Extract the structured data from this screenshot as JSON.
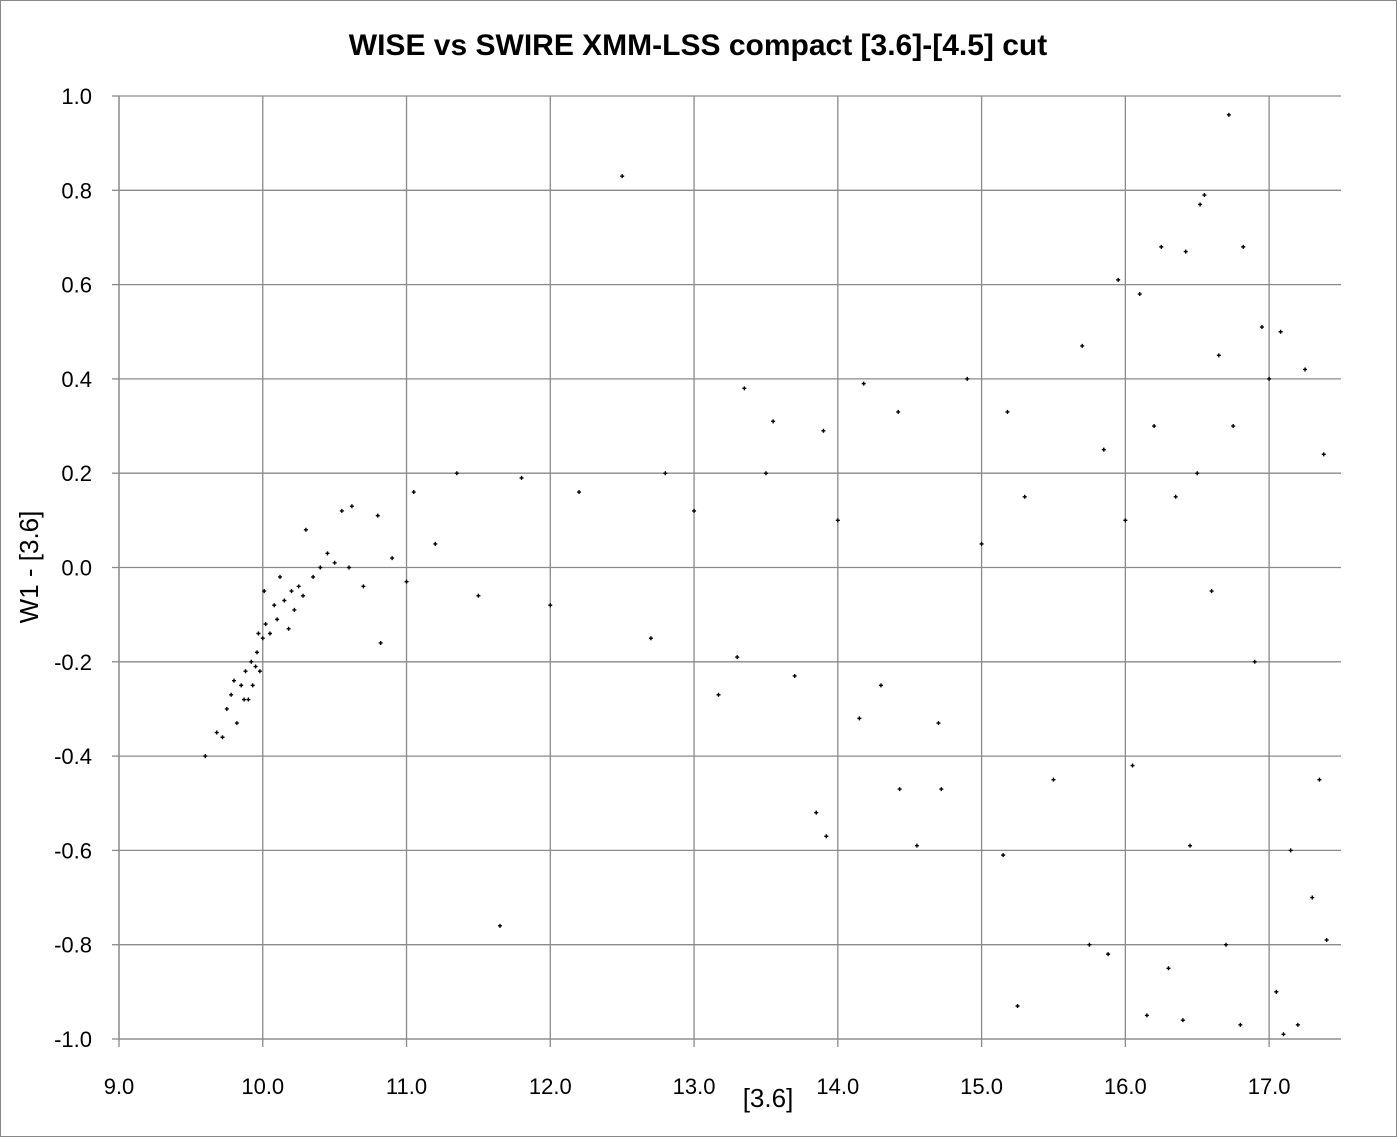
{
  "chart_data": {
    "type": "scatter",
    "title": "WISE vs SWIRE XMM-LSS compact [3.6]-[4.5] cut",
    "xlabel": "[3.6]",
    "ylabel": "W1 - [3.6]",
    "xlim": [
      9.0,
      17.5
    ],
    "ylim": [
      -1.0,
      1.0
    ],
    "x_ticks": [
      "9.0",
      "10.0",
      "11.0",
      "12.0",
      "13.0",
      "14.0",
      "15.0",
      "16.0",
      "17.0"
    ],
    "y_ticks": [
      "1.0",
      "0.8",
      "0.6",
      "0.4",
      "0.2",
      "0.0",
      "-0.2",
      "-0.4",
      "-0.6",
      "-0.8",
      "-1.0"
    ],
    "grid": true,
    "legend": "none",
    "marker_color": "#000000",
    "series": [
      {
        "points": [
          [
            9.6,
            -0.4
          ],
          [
            9.68,
            -0.35
          ],
          [
            9.72,
            -0.36
          ],
          [
            9.75,
            -0.3
          ],
          [
            9.78,
            -0.27
          ],
          [
            9.8,
            -0.24
          ],
          [
            9.82,
            -0.33
          ],
          [
            9.85,
            -0.25
          ],
          [
            9.87,
            -0.28
          ],
          [
            9.88,
            -0.22
          ],
          [
            9.9,
            -0.28
          ],
          [
            9.92,
            -0.2
          ],
          [
            9.93,
            -0.25
          ],
          [
            9.95,
            -0.21
          ],
          [
            9.96,
            -0.18
          ],
          [
            9.97,
            -0.14
          ],
          [
            9.98,
            -0.22
          ],
          [
            10.0,
            -0.15
          ],
          [
            10.01,
            -0.05
          ],
          [
            10.02,
            -0.12
          ],
          [
            10.05,
            -0.14
          ],
          [
            10.08,
            -0.08
          ],
          [
            10.1,
            -0.11
          ],
          [
            10.12,
            -0.02
          ],
          [
            10.15,
            -0.07
          ],
          [
            10.18,
            -0.13
          ],
          [
            10.2,
            -0.05
          ],
          [
            10.22,
            -0.09
          ],
          [
            10.25,
            -0.04
          ],
          [
            10.28,
            -0.06
          ],
          [
            10.3,
            0.08
          ],
          [
            10.35,
            -0.02
          ],
          [
            10.4,
            0.0
          ],
          [
            10.45,
            0.03
          ],
          [
            10.5,
            0.01
          ],
          [
            10.55,
            0.12
          ],
          [
            10.6,
            0.0
          ],
          [
            10.62,
            0.13
          ],
          [
            10.7,
            -0.04
          ],
          [
            10.8,
            0.11
          ],
          [
            10.82,
            -0.16
          ],
          [
            10.9,
            0.02
          ],
          [
            11.0,
            -0.03
          ],
          [
            11.05,
            0.16
          ],
          [
            11.2,
            0.05
          ],
          [
            11.35,
            0.2
          ],
          [
            11.5,
            -0.06
          ],
          [
            11.65,
            -0.76
          ],
          [
            11.8,
            0.19
          ],
          [
            12.0,
            -0.08
          ],
          [
            12.2,
            0.16
          ],
          [
            12.5,
            0.83
          ],
          [
            12.7,
            -0.15
          ],
          [
            12.8,
            0.2
          ],
          [
            13.0,
            0.12
          ],
          [
            13.17,
            -0.27
          ],
          [
            13.3,
            -0.19
          ],
          [
            13.35,
            0.38
          ],
          [
            13.5,
            0.2
          ],
          [
            13.55,
            0.31
          ],
          [
            13.7,
            -0.23
          ],
          [
            13.85,
            -0.52
          ],
          [
            13.9,
            0.29
          ],
          [
            13.92,
            -0.57
          ],
          [
            14.0,
            0.1
          ],
          [
            14.15,
            -0.32
          ],
          [
            14.18,
            0.39
          ],
          [
            14.3,
            -0.25
          ],
          [
            14.42,
            0.33
          ],
          [
            14.43,
            -0.47
          ],
          [
            14.55,
            -0.59
          ],
          [
            14.7,
            -0.33
          ],
          [
            14.72,
            -0.47
          ],
          [
            14.9,
            0.4
          ],
          [
            15.0,
            0.05
          ],
          [
            15.15,
            -0.61
          ],
          [
            15.18,
            0.33
          ],
          [
            15.25,
            -0.93
          ],
          [
            15.3,
            0.15
          ],
          [
            15.5,
            -0.45
          ],
          [
            15.7,
            0.47
          ],
          [
            15.75,
            -0.8
          ],
          [
            15.85,
            0.25
          ],
          [
            15.88,
            -0.82
          ],
          [
            15.95,
            0.61
          ],
          [
            16.0,
            0.1
          ],
          [
            16.05,
            -0.42
          ],
          [
            16.1,
            0.58
          ],
          [
            16.15,
            -0.95
          ],
          [
            16.2,
            0.3
          ],
          [
            16.25,
            0.68
          ],
          [
            16.3,
            -0.85
          ],
          [
            16.35,
            0.15
          ],
          [
            16.4,
            -0.96
          ],
          [
            16.42,
            0.67
          ],
          [
            16.45,
            -0.59
          ],
          [
            16.5,
            0.2
          ],
          [
            16.52,
            0.77
          ],
          [
            16.55,
            0.79
          ],
          [
            16.6,
            -0.05
          ],
          [
            16.65,
            0.45
          ],
          [
            16.7,
            -0.8
          ],
          [
            16.72,
            0.96
          ],
          [
            16.75,
            0.3
          ],
          [
            16.8,
            -0.97
          ],
          [
            16.82,
            0.68
          ],
          [
            16.9,
            -0.2
          ],
          [
            16.95,
            0.51
          ],
          [
            17.0,
            0.4
          ],
          [
            17.05,
            -0.9
          ],
          [
            17.08,
            0.5
          ],
          [
            17.1,
            -0.99
          ],
          [
            17.15,
            -0.6
          ],
          [
            17.2,
            -0.97
          ],
          [
            17.25,
            0.42
          ],
          [
            17.3,
            -0.7
          ],
          [
            17.35,
            -0.45
          ],
          [
            17.38,
            0.24
          ],
          [
            17.4,
            -0.79
          ]
        ]
      }
    ]
  }
}
